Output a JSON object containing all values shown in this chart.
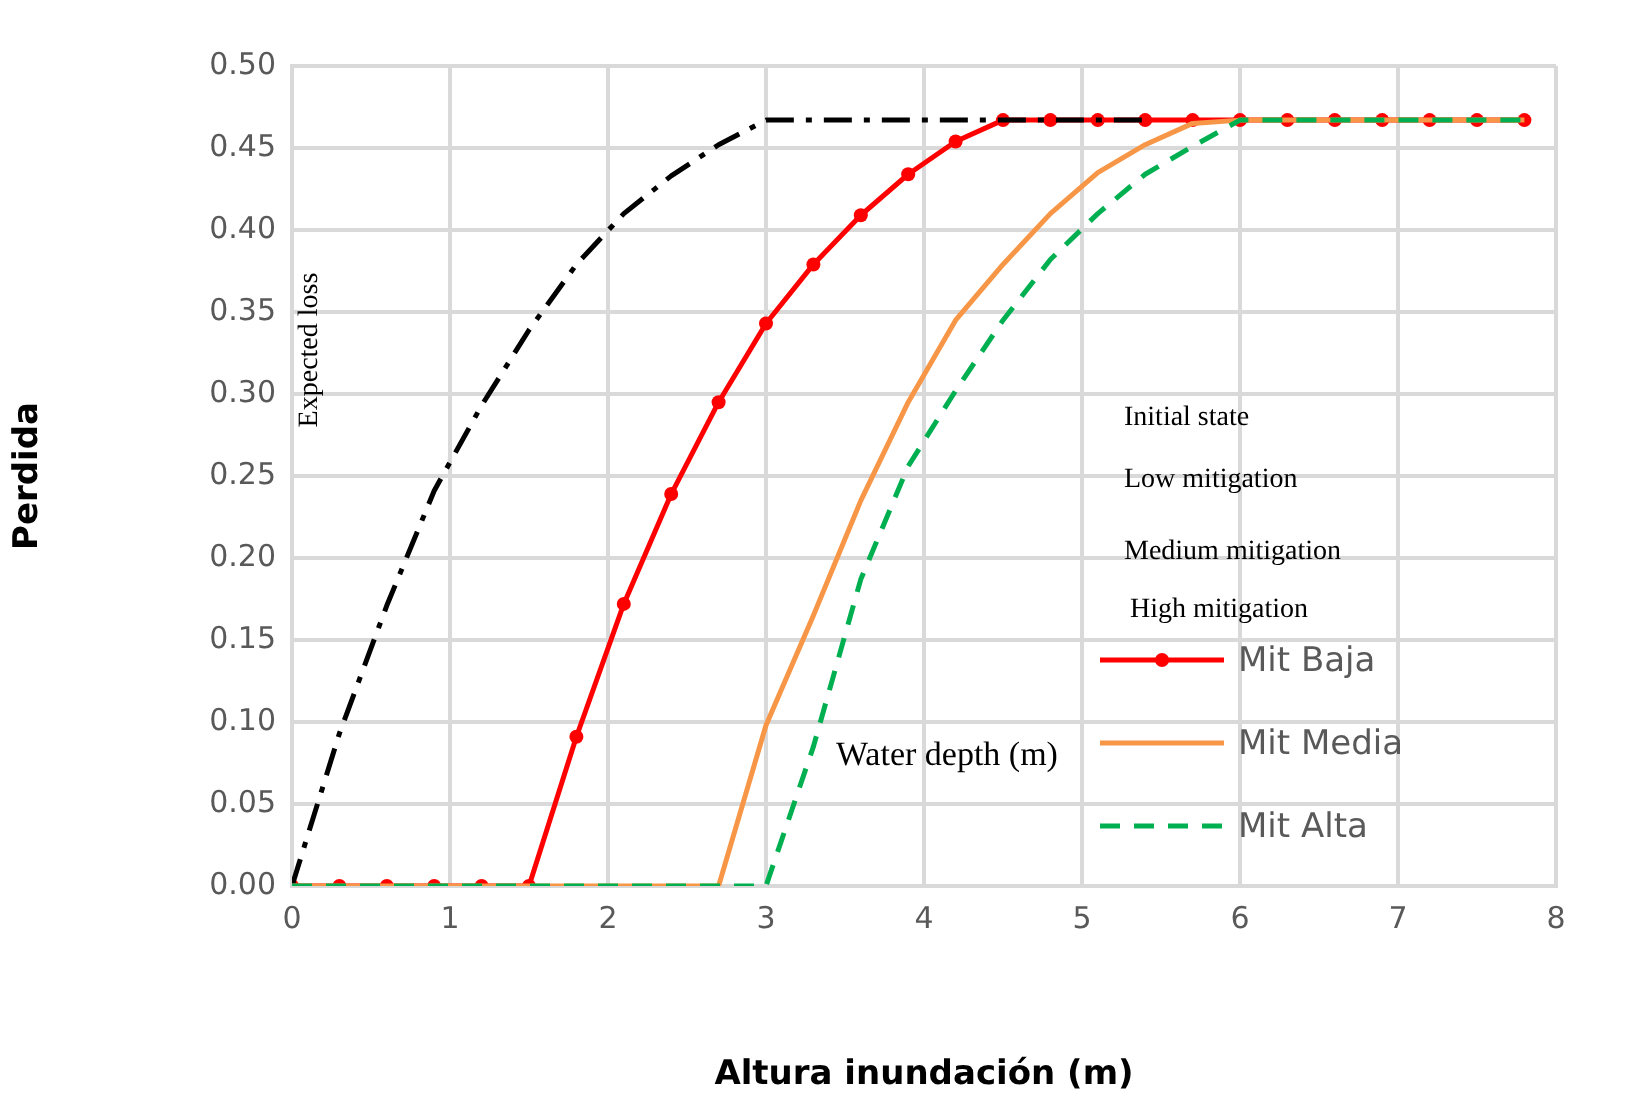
{
  "chart_data": {
    "type": "line",
    "xlabel": "Altura inundación (m)",
    "ylabel": "Perdida",
    "x": [
      0,
      0.3,
      0.6,
      0.9,
      1.2,
      1.5,
      1.8,
      2.1,
      2.4,
      2.7,
      3.0,
      3.3,
      3.6,
      3.9,
      4.2,
      4.5,
      4.8,
      5.1,
      5.4,
      5.7,
      6.0,
      6.3,
      6.6,
      6.9,
      7.2,
      7.5,
      7.8
    ],
    "series": [
      {
        "color": "#000000",
        "line_style": "dashdot",
        "marker": "none",
        "values": [
          0,
          0.093,
          0.171,
          0.241,
          0.293,
          0.339,
          0.379,
          0.41,
          0.433,
          0.452,
          0.467,
          0.467,
          0.467,
          0.467,
          0.467,
          0.467,
          0.467,
          0.467,
          0.467,
          null,
          null,
          null,
          null,
          null,
          null,
          null,
          null
        ]
      },
      {
        "name": "Mit Baja",
        "color": "#ff0000",
        "line_style": "solid",
        "marker": "circle",
        "values": [
          0,
          0,
          0,
          0,
          0,
          0,
          0.091,
          0.172,
          0.239,
          0.295,
          0.343,
          0.379,
          0.409,
          0.434,
          0.454,
          0.467,
          0.467,
          0.467,
          0.467,
          0.467,
          0.467,
          0.467,
          0.467,
          0.467,
          0.467,
          0.467,
          0.467
        ]
      },
      {
        "name": "Mit Media",
        "color": "#f79646",
        "line_style": "solid",
        "marker": "none",
        "values": [
          0,
          0,
          0,
          0,
          0,
          0,
          0,
          0,
          0,
          0,
          0.098,
          0.165,
          0.235,
          0.295,
          0.345,
          0.379,
          0.41,
          0.435,
          0.452,
          0.465,
          0.467,
          0.467,
          0.467,
          0.467,
          0.467,
          0.467,
          0.467
        ]
      },
      {
        "name": "Mit Alta",
        "color": "#00b050",
        "line_style": "dashed",
        "marker": "none",
        "values": [
          0,
          0,
          0,
          0,
          0,
          0,
          0,
          0,
          0,
          0,
          0,
          0.085,
          0.187,
          0.256,
          0.302,
          0.345,
          0.382,
          0.41,
          0.434,
          0.451,
          0.467,
          0.467,
          0.467,
          0.467,
          0.467,
          0.467,
          0.467
        ]
      }
    ],
    "xlim": [
      0,
      8
    ],
    "xticks": [
      0,
      1,
      2,
      3,
      4,
      5,
      6,
      7,
      8
    ],
    "ylim": [
      0,
      0.5
    ],
    "yticks": [
      {
        "value": 0,
        "label": "0.00"
      },
      {
        "value": 0.05,
        "label": "0.05"
      },
      {
        "value": 0.1,
        "label": "0.10"
      },
      {
        "value": 0.15,
        "label": "0.15"
      },
      {
        "value": 0.2,
        "label": "0.20"
      },
      {
        "value": 0.25,
        "label": "0.25"
      },
      {
        "value": 0.3,
        "label": "0.30"
      },
      {
        "value": 0.35,
        "label": "0.35"
      },
      {
        "value": 0.4,
        "label": "0.40"
      },
      {
        "value": 0.45,
        "label": "0.45"
      },
      {
        "value": 0.5,
        "label": "0.50"
      }
    ],
    "grid": true,
    "legend": "bottom right",
    "annotations": [
      "Expected loss",
      "Water depth (m)",
      "Initial state",
      "Low mitigation",
      "Medium mitigation",
      "High mitigation"
    ]
  }
}
